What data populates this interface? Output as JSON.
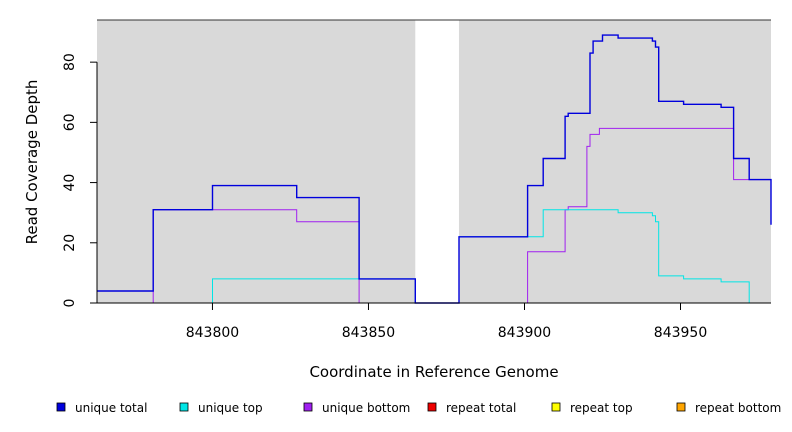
{
  "chart_data": {
    "type": "line",
    "xlabel": "Coordinate in Reference Genome",
    "ylabel": "Read Coverage Depth",
    "xlim": [
      843763,
      843979
    ],
    "ylim": [
      0,
      94
    ],
    "x_ticks": [
      843800,
      843850,
      843900,
      843950
    ],
    "x_tick_labels": [
      "843800",
      "843850",
      "843900",
      "843950"
    ],
    "y_ticks": [
      0,
      20,
      40,
      60,
      80
    ],
    "y_tick_labels": [
      "0",
      "20",
      "40",
      "60",
      "80"
    ],
    "gap_region": [
      843865,
      843879
    ],
    "series": [
      {
        "name": "unique total",
        "color": "#0000dd",
        "points": [
          [
            843763,
            4
          ],
          [
            843781,
            4
          ],
          [
            843781,
            31
          ],
          [
            843800,
            31
          ],
          [
            843800,
            39
          ],
          [
            843827,
            39
          ],
          [
            843827,
            35
          ],
          [
            843847,
            35
          ],
          [
            843847,
            8
          ],
          [
            843865,
            8
          ],
          [
            843865,
            0
          ],
          [
            843879,
            0
          ],
          [
            843879,
            22
          ],
          [
            843901,
            22
          ],
          [
            843901,
            39
          ],
          [
            843906,
            39
          ],
          [
            843906,
            48
          ],
          [
            843913,
            48
          ],
          [
            843913,
            62
          ],
          [
            843914,
            62
          ],
          [
            843914,
            63
          ],
          [
            843921,
            63
          ],
          [
            843921,
            83
          ],
          [
            843922,
            83
          ],
          [
            843922,
            87
          ],
          [
            843925,
            87
          ],
          [
            843925,
            89
          ],
          [
            843930,
            89
          ],
          [
            843930,
            88
          ],
          [
            843941,
            88
          ],
          [
            843941,
            87
          ],
          [
            843942,
            87
          ],
          [
            843942,
            85
          ],
          [
            843943,
            85
          ],
          [
            843943,
            67
          ],
          [
            843951,
            67
          ],
          [
            843951,
            66
          ],
          [
            843963,
            66
          ],
          [
            843963,
            65
          ],
          [
            843967,
            65
          ],
          [
            843967,
            48
          ],
          [
            843972,
            48
          ],
          [
            843972,
            41
          ],
          [
            843979,
            41
          ],
          [
            843979,
            26
          ]
        ]
      },
      {
        "name": "unique top",
        "color": "#00e5e5",
        "points": [
          [
            843763,
            0
          ],
          [
            843800,
            0
          ],
          [
            843800,
            8
          ],
          [
            843865,
            8
          ],
          [
            843865,
            0
          ],
          [
            843879,
            0
          ],
          [
            843879,
            22
          ],
          [
            843906,
            22
          ],
          [
            843906,
            31
          ],
          [
            843930,
            31
          ],
          [
            843930,
            30
          ],
          [
            843941,
            30
          ],
          [
            843941,
            29
          ],
          [
            843942,
            29
          ],
          [
            843942,
            27
          ],
          [
            843943,
            27
          ],
          [
            843943,
            9
          ],
          [
            843951,
            9
          ],
          [
            843951,
            8
          ],
          [
            843963,
            8
          ],
          [
            843963,
            7
          ],
          [
            843972,
            7
          ],
          [
            843972,
            0
          ],
          [
            843979,
            0
          ]
        ]
      },
      {
        "name": "unique bottom",
        "color": "#a020f0",
        "points": [
          [
            843763,
            0
          ],
          [
            843781,
            0
          ],
          [
            843781,
            31
          ],
          [
            843827,
            31
          ],
          [
            843827,
            27
          ],
          [
            843847,
            27
          ],
          [
            843847,
            0
          ],
          [
            843901,
            0
          ],
          [
            843901,
            17
          ],
          [
            843913,
            17
          ],
          [
            843913,
            31
          ],
          [
            843914,
            31
          ],
          [
            843914,
            32
          ],
          [
            843920,
            32
          ],
          [
            843920,
            52
          ],
          [
            843921,
            52
          ],
          [
            843921,
            56
          ],
          [
            843924,
            56
          ],
          [
            843924,
            58
          ],
          [
            843967,
            58
          ],
          [
            843967,
            41
          ],
          [
            843979,
            41
          ]
        ]
      },
      {
        "name": "repeat total",
        "color": "#ee0000",
        "points": []
      },
      {
        "name": "repeat top",
        "color": "#ffff00",
        "points": []
      },
      {
        "name": "repeat bottom",
        "color": "#ffa500",
        "points": [
          [
            843800,
            0
          ],
          [
            843865,
            0
          ],
          [
            843879,
            0
          ],
          [
            843979,
            0
          ]
        ]
      }
    ],
    "legend": [
      "unique total",
      "unique top",
      "unique bottom",
      "repeat total",
      "repeat top",
      "repeat bottom"
    ],
    "legend_position": "bottom"
  }
}
